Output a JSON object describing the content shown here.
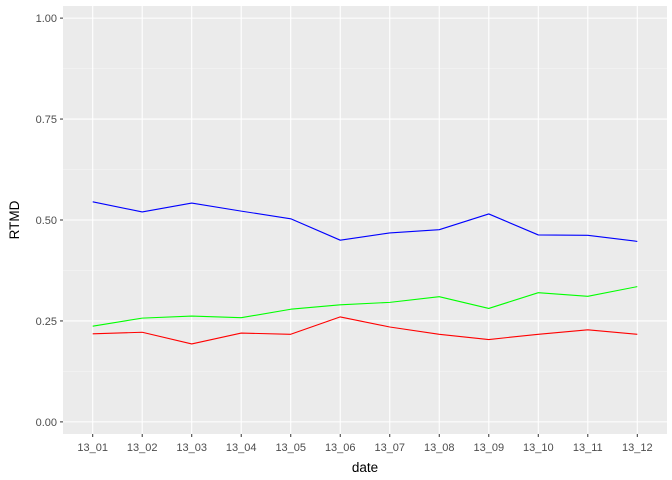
{
  "chart_data": {
    "type": "line",
    "title": "",
    "xlabel": "date",
    "ylabel": "RTMD",
    "categories": [
      "13_01",
      "13_02",
      "13_03",
      "13_04",
      "13_05",
      "13_06",
      "13_07",
      "13_08",
      "13_09",
      "13_10",
      "13_11",
      "13_12"
    ],
    "ylim": [
      -0.03,
      1.03
    ],
    "yticks": [
      0.0,
      0.25,
      0.5,
      0.75,
      1.0
    ],
    "ytick_labels": [
      "0.00",
      "0.25",
      "0.50",
      "0.75",
      "1.00"
    ],
    "grid": true,
    "legend": "none",
    "series": [
      {
        "color": "#0000ff",
        "values": [
          0.545,
          0.52,
          0.542,
          0.522,
          0.503,
          0.45,
          0.468,
          0.476,
          0.515,
          0.463,
          0.462,
          0.447
        ]
      },
      {
        "color": "#00ff00",
        "values": [
          0.237,
          0.257,
          0.262,
          0.258,
          0.279,
          0.29,
          0.296,
          0.31,
          0.281,
          0.32,
          0.311,
          0.335
        ]
      },
      {
        "color": "#ff0000",
        "values": [
          0.218,
          0.222,
          0.193,
          0.22,
          0.217,
          0.26,
          0.235,
          0.217,
          0.204,
          0.217,
          0.228,
          0.217
        ]
      }
    ],
    "colors": {
      "panel_background": "#ebebeb",
      "grid_major": "#ffffff",
      "grid_minor": "#f5f5f5",
      "tick_mark": "#333333"
    }
  }
}
